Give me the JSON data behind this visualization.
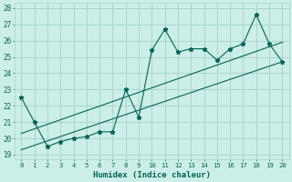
{
  "xlabel": "Humidex (Indice chaleur)",
  "background_color": "#cceee8",
  "grid_color": "#aad4ce",
  "line_color": "#006655",
  "xlim": [
    -0.5,
    20.5
  ],
  "ylim": [
    18.7,
    28.3
  ],
  "yticks": [
    19,
    20,
    21,
    22,
    23,
    24,
    25,
    26,
    27,
    28
  ],
  "xticks": [
    0,
    1,
    2,
    3,
    4,
    5,
    6,
    7,
    8,
    9,
    10,
    11,
    12,
    13,
    14,
    15,
    16,
    17,
    18,
    19,
    20
  ],
  "series1_x": [
    0,
    1,
    2,
    3,
    4,
    5,
    6,
    7,
    8,
    9,
    10,
    11,
    12,
    13,
    14,
    15,
    16,
    17,
    18,
    19,
    20
  ],
  "series1_y": [
    22.5,
    21.0,
    19.5,
    19.8,
    20.0,
    20.1,
    20.4,
    20.4,
    23.0,
    21.3,
    25.4,
    26.7,
    25.3,
    25.5,
    25.5,
    24.8,
    25.5,
    25.8,
    27.6,
    25.8,
    24.7
  ],
  "line1_x": [
    0,
    20
  ],
  "line1_y": [
    19.3,
    24.7
  ],
  "line2_x": [
    0,
    20
  ],
  "line2_y": [
    20.3,
    25.9
  ]
}
